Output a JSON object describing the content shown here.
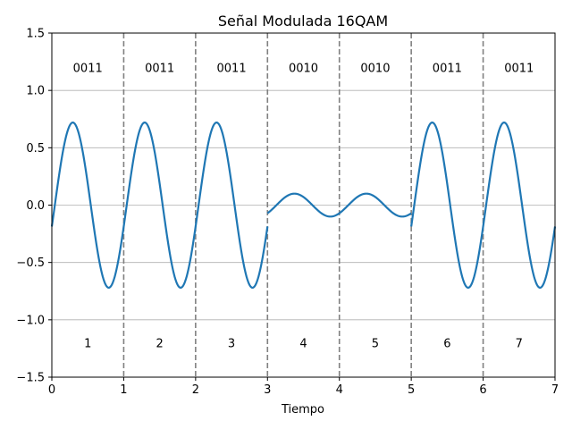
{
  "chart_data": {
    "type": "line",
    "title": "Señal Modulada 16QAM",
    "xlabel": "Tiempo",
    "ylabel": "",
    "xlim": [
      0,
      7
    ],
    "ylim": [
      -1.5,
      1.5
    ],
    "xticks": [
      0,
      1,
      2,
      3,
      4,
      5,
      6,
      7
    ],
    "xtick_labels": [
      "0",
      "1",
      "2",
      "3",
      "4",
      "5",
      "6",
      "7"
    ],
    "yticks": [
      -1.5,
      -1.0,
      -0.5,
      0.0,
      0.5,
      1.0,
      1.5
    ],
    "ytick_labels": [
      "−1.5",
      "−1.0",
      "−0.5",
      "0.0",
      "0.5",
      "1.0",
      "1.5"
    ],
    "grid": "y",
    "line_color": "#1f77b4",
    "divider_color": "#808080",
    "symbol_boundaries": [
      1,
      2,
      3,
      4,
      5,
      6
    ],
    "symbols": [
      {
        "index": "1",
        "bits": "0011",
        "start": 0,
        "end": 1,
        "amplitude": 0.72,
        "phase_deg": -15
      },
      {
        "index": "2",
        "bits": "0011",
        "start": 1,
        "end": 2,
        "amplitude": 0.72,
        "phase_deg": -15
      },
      {
        "index": "3",
        "bits": "0011",
        "start": 2,
        "end": 3,
        "amplitude": 0.72,
        "phase_deg": -15
      },
      {
        "index": "4",
        "bits": "0010",
        "start": 3,
        "end": 4,
        "amplitude": 0.1,
        "phase_deg": -45
      },
      {
        "index": "5",
        "bits": "0010",
        "start": 4,
        "end": 5,
        "amplitude": 0.1,
        "phase_deg": -45
      },
      {
        "index": "6",
        "bits": "0011",
        "start": 5,
        "end": 6,
        "amplitude": 0.72,
        "phase_deg": -15
      },
      {
        "index": "7",
        "bits": "0011",
        "start": 6,
        "end": 7,
        "amplitude": 0.72,
        "phase_deg": -15
      }
    ],
    "bits_label_y": 1.2,
    "index_label_y": -1.2
  }
}
